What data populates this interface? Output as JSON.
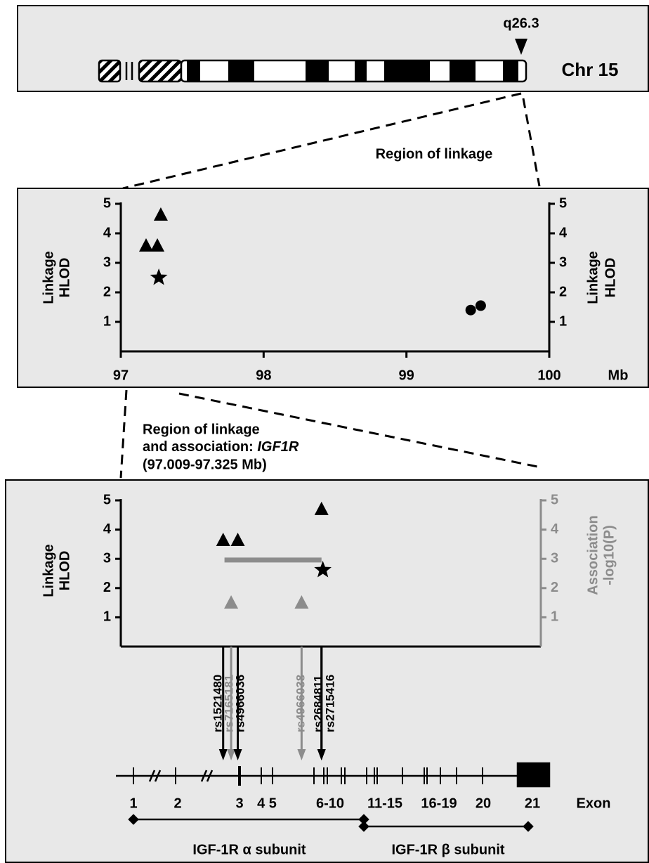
{
  "chromosome": {
    "name": "Chr 15",
    "band": "q26.3"
  },
  "region_labels": {
    "linkage": "Region of linkage",
    "association": [
      "Region of linkage",
      "and association: ",
      "IGF1R",
      "(97.009-97.325 Mb)"
    ]
  },
  "chart_data": [
    {
      "type": "scatter",
      "y_label": [
        "Linkage",
        "HLOD"
      ],
      "y2_label": [
        "Linkage",
        "HLOD"
      ],
      "x_unit": "Mb",
      "xlim": [
        97,
        100
      ],
      "xticks": [
        97,
        98,
        99,
        100
      ],
      "ylim": [
        0,
        5
      ],
      "yticks": [
        1,
        2,
        3,
        4,
        5
      ],
      "y2lim": [
        0,
        5
      ],
      "y2ticks": [
        1,
        2,
        3,
        4,
        5
      ],
      "y2_color": "#000000",
      "series": [
        {
          "marker": "triangle",
          "color": "#000000",
          "x": [
            97.177,
            97.256,
            97.28
          ],
          "values": [
            3.57,
            3.57,
            4.62
          ]
        },
        {
          "marker": "star",
          "color": "#000000",
          "x": [
            97.266
          ],
          "values": [
            2.5
          ]
        },
        {
          "marker": "circle",
          "color": "#000000",
          "x": [
            99.45,
            99.52
          ],
          "values": [
            1.4,
            1.55
          ]
        }
      ]
    },
    {
      "type": "scatter",
      "y_label": [
        "Linkage",
        "HLOD"
      ],
      "y2_label": [
        "Association",
        "-log10(P)"
      ],
      "xlim": [
        97.009,
        97.325
      ],
      "ylim": [
        0,
        5
      ],
      "yticks": [
        1,
        2,
        3,
        4,
        5
      ],
      "y2lim": [
        0,
        5
      ],
      "y2ticks": [
        1,
        2,
        3,
        4,
        5
      ],
      "y2_color": "#8c8c8c",
      "series": [
        {
          "marker": "triangle",
          "color": "#000000",
          "x": [
            97.086,
            97.097,
            97.16
          ],
          "values": [
            3.63,
            3.63,
            4.69
          ]
        },
        {
          "marker": "star",
          "color": "#000000",
          "x": [
            97.161
          ],
          "values": [
            2.62
          ]
        },
        {
          "marker": "triangle",
          "color": "#8c8c8c",
          "axis": "y2",
          "x": [
            97.092,
            97.145
          ],
          "values": [
            1.49,
            1.49
          ]
        }
      ],
      "segments": [
        {
          "axis": "y2",
          "color": "#8c8c8c",
          "x": [
            97.087,
            97.16
          ],
          "value": 2.96
        }
      ],
      "snps": [
        {
          "name": "rs1521480",
          "x": 97.086,
          "color": "#000000"
        },
        {
          "name": "rs7165181",
          "x": 97.092,
          "color": "#8c8c8c"
        },
        {
          "name": "rs4966036",
          "x": 97.097,
          "color": "#000000"
        },
        {
          "name": "rs4966038",
          "x": 97.145,
          "color": "#8c8c8c"
        },
        {
          "name": "rs2684811",
          "x": 97.16,
          "color": "#000000"
        },
        {
          "name": "rs2715416",
          "x": 97.16,
          "color": "#000000"
        }
      ]
    }
  ],
  "gene": {
    "exon_labels": [
      "1",
      "2",
      "3",
      "4 5",
      "6-10",
      "11-15",
      "16-19",
      "20",
      "21"
    ],
    "exon_title": "Exon",
    "subunits": [
      "IGF-1R α subunit",
      "IGF-1R β subunit"
    ]
  }
}
